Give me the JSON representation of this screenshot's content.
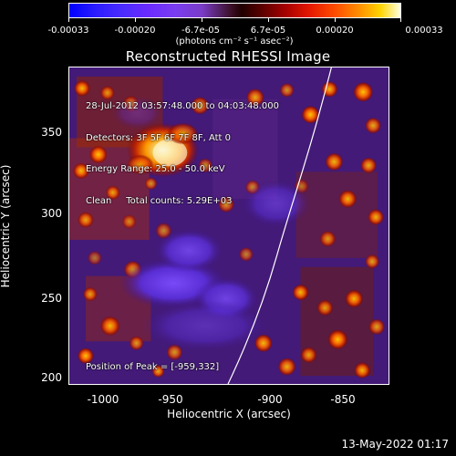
{
  "colorbar": {
    "labels": [
      "-0.00033",
      "-0.00020",
      "-6.7e-05",
      "6.7e-05",
      "0.00020",
      "0.00033"
    ],
    "unit": "(photons cm⁻² s⁻¹ asec⁻²)"
  },
  "title": "Reconstructed RHESSI Image",
  "info": {
    "lines": [
      "28-Jul-2012 03:57:48.000 to 04:03:48.000",
      "Detectors: 3F 5F 6F 7F 8F, Att 0",
      "Energy Range: 25.0 - 50.0 keV",
      "Clean     Total counts: 5.29E+03"
    ]
  },
  "peak": "Position of Peak = [-959,332]",
  "axes": {
    "xlabel": "Heliocentric X (arcsec)",
    "ylabel": "Heliocentric Y (arcsec)",
    "x_ticks": [
      "-1000",
      "-950",
      "-900",
      "-850"
    ],
    "y_ticks": [
      "350",
      "300",
      "250",
      "200"
    ]
  },
  "timestamp": "13-May-2022 01:17",
  "colors": {
    "background": "#000000",
    "text": "#ffffff",
    "limb": "#ffffff"
  }
}
